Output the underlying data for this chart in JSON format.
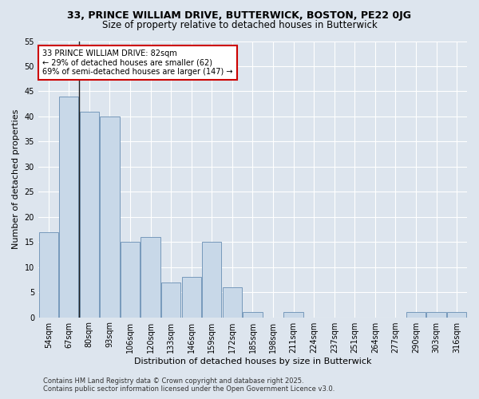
{
  "title_line1": "33, PRINCE WILLIAM DRIVE, BUTTERWICK, BOSTON, PE22 0JG",
  "title_line2": "Size of property relative to detached houses in Butterwick",
  "xlabel": "Distribution of detached houses by size in Butterwick",
  "ylabel": "Number of detached properties",
  "categories": [
    "54sqm",
    "67sqm",
    "80sqm",
    "93sqm",
    "106sqm",
    "120sqm",
    "133sqm",
    "146sqm",
    "159sqm",
    "172sqm",
    "185sqm",
    "198sqm",
    "211sqm",
    "224sqm",
    "237sqm",
    "251sqm",
    "264sqm",
    "277sqm",
    "290sqm",
    "303sqm",
    "316sqm"
  ],
  "values": [
    17,
    44,
    41,
    40,
    15,
    16,
    7,
    8,
    15,
    6,
    1,
    0,
    1,
    0,
    0,
    0,
    0,
    0,
    1,
    1,
    1
  ],
  "bar_color": "#c8d8e8",
  "bar_edge_color": "#7799bb",
  "vline_color": "#222222",
  "annotation_text": "33 PRINCE WILLIAM DRIVE: 82sqm\n← 29% of detached houses are smaller (62)\n69% of semi-detached houses are larger (147) →",
  "annotation_box_color": "#ffffff",
  "annotation_box_edge": "#cc0000",
  "ylim": [
    0,
    55
  ],
  "yticks": [
    0,
    5,
    10,
    15,
    20,
    25,
    30,
    35,
    40,
    45,
    50,
    55
  ],
  "background_color": "#dde5ee",
  "grid_color": "#ffffff",
  "footer_line1": "Contains HM Land Registry data © Crown copyright and database right 2025.",
  "footer_line2": "Contains public sector information licensed under the Open Government Licence v3.0.",
  "title_fontsize": 9,
  "subtitle_fontsize": 8.5,
  "axis_label_fontsize": 8,
  "tick_fontsize": 7,
  "annotation_fontsize": 7,
  "footer_fontsize": 6
}
